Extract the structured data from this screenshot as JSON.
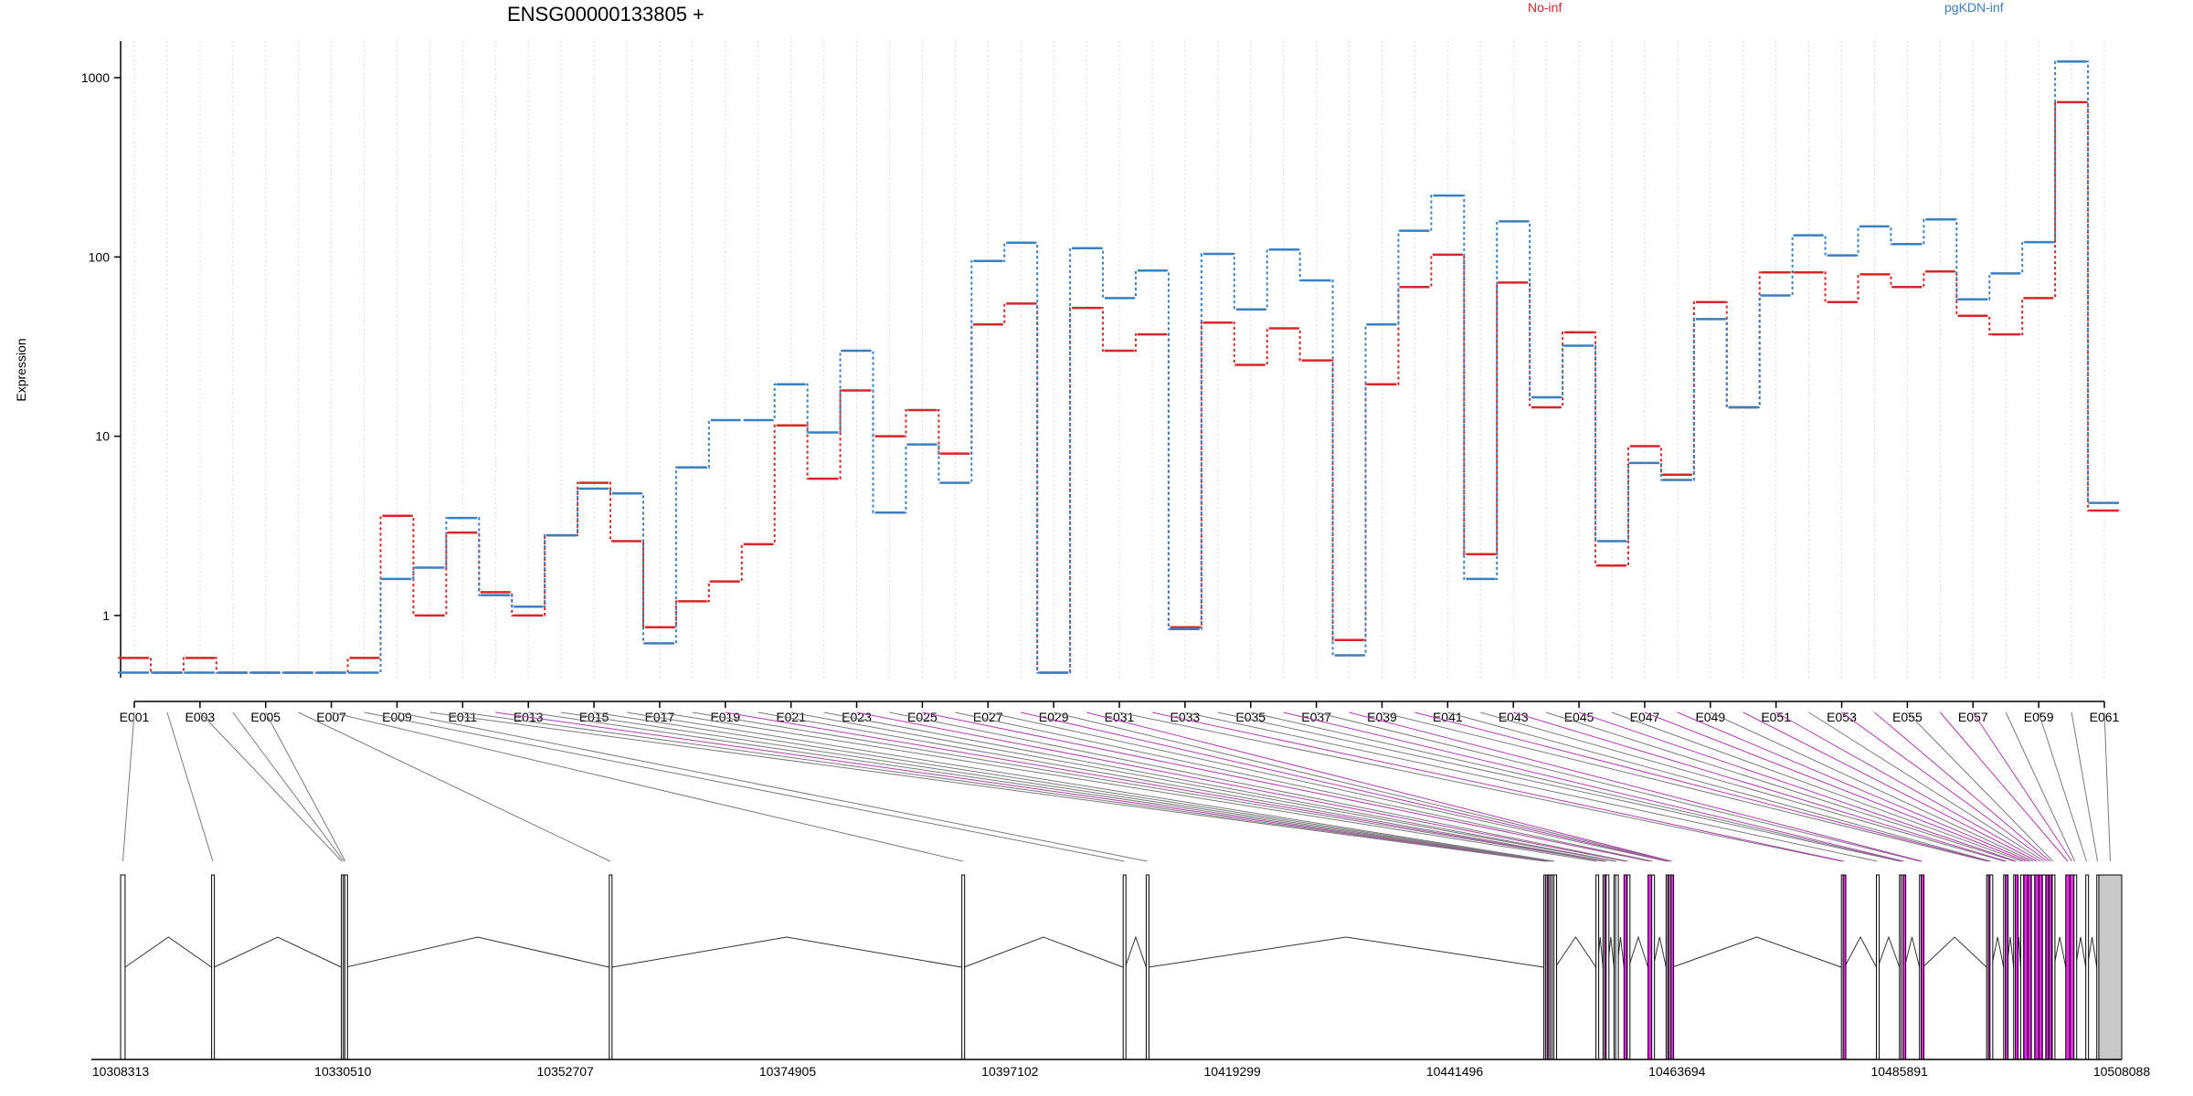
{
  "chart_data": {
    "type": "line",
    "title": "ENSG00000133805 +",
    "ylabel": "Expression",
    "xlabel": "",
    "yscale": "log",
    "ylim": [
      0.45,
      1600
    ],
    "y_ticks": [
      {
        "value": 1,
        "label": "1"
      },
      {
        "value": 10,
        "label": "10"
      },
      {
        "value": 100,
        "label": "100"
      },
      {
        "value": 1000,
        "label": "1000"
      }
    ],
    "grid": true,
    "legend": "top",
    "categories": [
      "E001",
      "E002",
      "E003",
      "E004",
      "E005",
      "E006",
      "E007",
      "E008",
      "E009",
      "E010",
      "E011",
      "E012",
      "E013",
      "E014",
      "E015",
      "E016",
      "E017",
      "E018",
      "E019",
      "E020",
      "E021",
      "E022",
      "E023",
      "E024",
      "E025",
      "E026",
      "E027",
      "E028",
      "E029",
      "E030",
      "E031",
      "E032",
      "E033",
      "E034",
      "E035",
      "E036",
      "E037",
      "E038",
      "E039",
      "E040",
      "E041",
      "E042",
      "E043",
      "E044",
      "E045",
      "E046",
      "E047",
      "E048",
      "E049",
      "E050",
      "E051",
      "E052",
      "E053",
      "E054",
      "E055",
      "E056",
      "E057",
      "E058",
      "E059",
      "E060",
      "E061"
    ],
    "x_tick_labels": [
      "E001",
      "E003",
      "E005",
      "E007",
      "E009",
      "E011",
      "E013",
      "E015",
      "E017",
      "E019",
      "E021",
      "E023",
      "E025",
      "E027",
      "E029",
      "E031",
      "E033",
      "E035",
      "E037",
      "E039",
      "E041",
      "E043",
      "E045",
      "E047",
      "E049",
      "E051",
      "E053",
      "E055",
      "E057",
      "E059",
      "E061"
    ],
    "series": [
      {
        "name": "No-inf",
        "color": "#d62728",
        "values": [
          0.58,
          0.48,
          0.58,
          0.48,
          0.48,
          0.48,
          0.48,
          0.58,
          3.6,
          1.0,
          2.9,
          1.35,
          1.0,
          2.8,
          5.5,
          2.6,
          0.86,
          1.2,
          1.55,
          2.5,
          11.5,
          5.8,
          18,
          10,
          14,
          8,
          42,
          55,
          0.48,
          52,
          30,
          37,
          0.86,
          43,
          25,
          40,
          26.5,
          0.73,
          19.5,
          68,
          103,
          2.2,
          72,
          14.5,
          38,
          1.9,
          8.8,
          6.1,
          56,
          14.5,
          82,
          82,
          56,
          80,
          68,
          83,
          47,
          37,
          59,
          730,
          3.85
        ]
      },
      {
        "name": "pgKDN-inf",
        "color": "#3a7fc1",
        "values": [
          0.48,
          0.48,
          0.48,
          0.48,
          0.48,
          0.48,
          0.48,
          0.48,
          1.6,
          1.85,
          3.5,
          1.3,
          1.12,
          2.8,
          5.1,
          4.8,
          0.7,
          6.7,
          12.3,
          12.3,
          19.5,
          10.5,
          30,
          3.75,
          9,
          5.5,
          95,
          120,
          0.48,
          112,
          59,
          84,
          0.84,
          104,
          51,
          110,
          74,
          0.6,
          42,
          140,
          220,
          1.6,
          158,
          16.5,
          32,
          2.6,
          7.1,
          5.7,
          45,
          14.5,
          61,
          132,
          102,
          148,
          118,
          162,
          58,
          81,
          121,
          1230,
          4.25
        ]
      }
    ]
  },
  "gene_model": {
    "coordinate_labels": [
      "10308313",
      "10330510",
      "10352707",
      "10374905",
      "10397102",
      "10419299",
      "10441496",
      "10463694",
      "10485891",
      "10508088"
    ],
    "coordinate_range": [
      10308313,
      10508088
    ],
    "exon_color": "#ffffff",
    "highlight_color": "#ee22ee",
    "utr_color": "#c8c8c8",
    "exons": [
      {
        "id": "E001",
        "start": 10308313,
        "end": 10308760,
        "highlight": false
      },
      {
        "id": "E002",
        "start": 10317400,
        "end": 10317640,
        "highlight": false
      },
      {
        "id": "E003",
        "start": 10330350,
        "end": 10330450,
        "highlight": false
      },
      {
        "id": "E004",
        "start": 10330540,
        "end": 10330640,
        "highlight": false
      },
      {
        "id": "E005",
        "start": 10330690,
        "end": 10330790,
        "highlight": false
      },
      {
        "id": "E006",
        "start": 10357100,
        "end": 10357300,
        "highlight": false
      },
      {
        "id": "E007",
        "start": 10392300,
        "end": 10392500,
        "highlight": false
      },
      {
        "id": "E008",
        "start": 10408400,
        "end": 10408600,
        "highlight": false
      },
      {
        "id": "E009",
        "start": 10410700,
        "end": 10410900,
        "highlight": false
      },
      {
        "id": "E010",
        "start": 10450400,
        "end": 10450540,
        "highlight": false
      },
      {
        "id": "E011",
        "start": 10450560,
        "end": 10450700,
        "highlight": false
      },
      {
        "id": "E012",
        "start": 10450720,
        "end": 10450860,
        "highlight": true
      },
      {
        "id": "E013",
        "start": 10450880,
        "end": 10451020,
        "highlight": false
      },
      {
        "id": "E014",
        "start": 10451040,
        "end": 10451180,
        "highlight": false
      },
      {
        "id": "E015",
        "start": 10451220,
        "end": 10451360,
        "highlight": false
      },
      {
        "id": "E016",
        "start": 10451400,
        "end": 10451540,
        "highlight": false
      },
      {
        "id": "E017",
        "start": 10455600,
        "end": 10455740,
        "highlight": false
      },
      {
        "id": "E018",
        "start": 10456300,
        "end": 10456440,
        "highlight": false
      },
      {
        "id": "E019",
        "start": 10456460,
        "end": 10456600,
        "highlight": true
      },
      {
        "id": "E020",
        "start": 10456620,
        "end": 10456760,
        "highlight": false
      },
      {
        "id": "E021",
        "start": 10457400,
        "end": 10457540,
        "highlight": false
      },
      {
        "id": "E022",
        "start": 10457560,
        "end": 10457700,
        "highlight": false
      },
      {
        "id": "E023",
        "start": 10458400,
        "end": 10458700,
        "highlight": true
      },
      {
        "id": "E024",
        "start": 10458720,
        "end": 10458860,
        "highlight": false
      },
      {
        "id": "E025",
        "start": 10460800,
        "end": 10461150,
        "highlight": true
      },
      {
        "id": "E026",
        "start": 10461170,
        "end": 10461310,
        "highlight": false
      },
      {
        "id": "E027",
        "start": 10462600,
        "end": 10462740,
        "highlight": false
      },
      {
        "id": "E028",
        "start": 10462760,
        "end": 10462900,
        "highlight": true
      },
      {
        "id": "E029",
        "start": 10462920,
        "end": 10463060,
        "highlight": false
      },
      {
        "id": "E030",
        "start": 10463080,
        "end": 10463220,
        "highlight": true
      },
      {
        "id": "E031",
        "start": 10480100,
        "end": 10480250,
        "highlight": false
      },
      {
        "id": "E032",
        "start": 10480270,
        "end": 10480400,
        "highlight": true
      },
      {
        "id": "E033",
        "start": 10483600,
        "end": 10483740,
        "highlight": false
      },
      {
        "id": "E034",
        "start": 10485900,
        "end": 10486040,
        "highlight": false
      },
      {
        "id": "E035",
        "start": 10486060,
        "end": 10486200,
        "highlight": false
      },
      {
        "id": "E036",
        "start": 10486250,
        "end": 10486400,
        "highlight": true
      },
      {
        "id": "E037",
        "start": 10487900,
        "end": 10488050,
        "highlight": false
      },
      {
        "id": "E038",
        "start": 10488070,
        "end": 10488220,
        "highlight": true
      },
      {
        "id": "E039",
        "start": 10494600,
        "end": 10494750,
        "highlight": false
      },
      {
        "id": "E040",
        "start": 10494770,
        "end": 10494920,
        "highlight": true
      },
      {
        "id": "E041",
        "start": 10494940,
        "end": 10495090,
        "highlight": false
      },
      {
        "id": "E042",
        "start": 10496300,
        "end": 10496450,
        "highlight": false
      },
      {
        "id": "E043",
        "start": 10496470,
        "end": 10496620,
        "highlight": true
      },
      {
        "id": "E044",
        "start": 10497300,
        "end": 10497450,
        "highlight": false
      },
      {
        "id": "E045",
        "start": 10497470,
        "end": 10497620,
        "highlight": true
      },
      {
        "id": "E046",
        "start": 10498000,
        "end": 10498300,
        "highlight": false
      },
      {
        "id": "E047",
        "start": 10498320,
        "end": 10498700,
        "highlight": true
      },
      {
        "id": "E048",
        "start": 10498720,
        "end": 10499050,
        "highlight": true
      },
      {
        "id": "E049",
        "start": 10499070,
        "end": 10499400,
        "highlight": false
      },
      {
        "id": "E050",
        "start": 10499420,
        "end": 10499800,
        "highlight": true
      },
      {
        "id": "E051",
        "start": 10499820,
        "end": 10500150,
        "highlight": true
      },
      {
        "id": "E052",
        "start": 10500170,
        "end": 10500500,
        "highlight": false
      },
      {
        "id": "E053",
        "start": 10500520,
        "end": 10500800,
        "highlight": true
      },
      {
        "id": "E054",
        "start": 10500820,
        "end": 10501100,
        "highlight": true
      },
      {
        "id": "E055",
        "start": 10501150,
        "end": 10501300,
        "highlight": false
      },
      {
        "id": "E056",
        "start": 10502500,
        "end": 10502900,
        "highlight": true
      },
      {
        "id": "E057",
        "start": 10502920,
        "end": 10503300,
        "highlight": true
      },
      {
        "id": "E058",
        "start": 10503320,
        "end": 10503470,
        "highlight": false
      },
      {
        "id": "E059",
        "start": 10504500,
        "end": 10504650,
        "highlight": false
      },
      {
        "id": "E060",
        "start": 10505600,
        "end": 10505750,
        "highlight": false
      },
      {
        "id": "E061",
        "start": 10505800,
        "end": 10508088,
        "highlight": false,
        "utr": true
      }
    ]
  }
}
